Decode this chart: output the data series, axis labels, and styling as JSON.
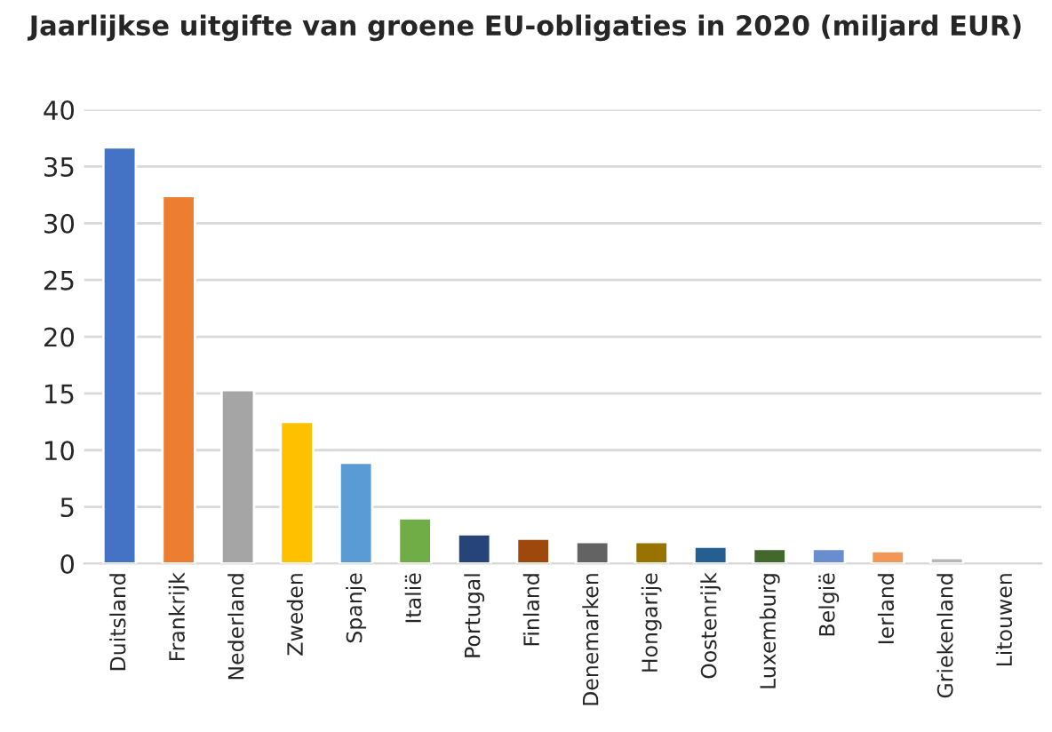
{
  "chart_data": {
    "type": "bar",
    "title": "Jaarlijkse uitgifte van groene EU-obligaties in 2020 (miljard EUR)",
    "categories": [
      "Duitsland",
      "Frankrijk",
      "Nederland",
      "Zweden",
      "Spanje",
      "Italië",
      "Portugal",
      "Finland",
      "Denemarken",
      "Hongarije",
      "Oostenrijk",
      "Luxemburg",
      "België",
      "Ierland",
      "Griekenland",
      "Litouwen"
    ],
    "values": [
      36.7,
      32.4,
      15.3,
      12.5,
      8.9,
      4.0,
      2.6,
      2.2,
      1.9,
      1.9,
      1.5,
      1.3,
      1.3,
      1.1,
      0.5,
      null
    ],
    "colors": [
      "#4472c4",
      "#ed7d31",
      "#a5a5a5",
      "#ffc000",
      "#5b9bd5",
      "#70ad47",
      "#264478",
      "#9e480e",
      "#636363",
      "#997300",
      "#255e91",
      "#43682b",
      "#698ed0",
      "#f1975a",
      "#b7b7b7",
      null
    ],
    "ylim": [
      0,
      40
    ],
    "yticks": [
      0,
      5,
      10,
      15,
      20,
      25,
      30,
      35,
      40
    ],
    "grid": "y"
  }
}
